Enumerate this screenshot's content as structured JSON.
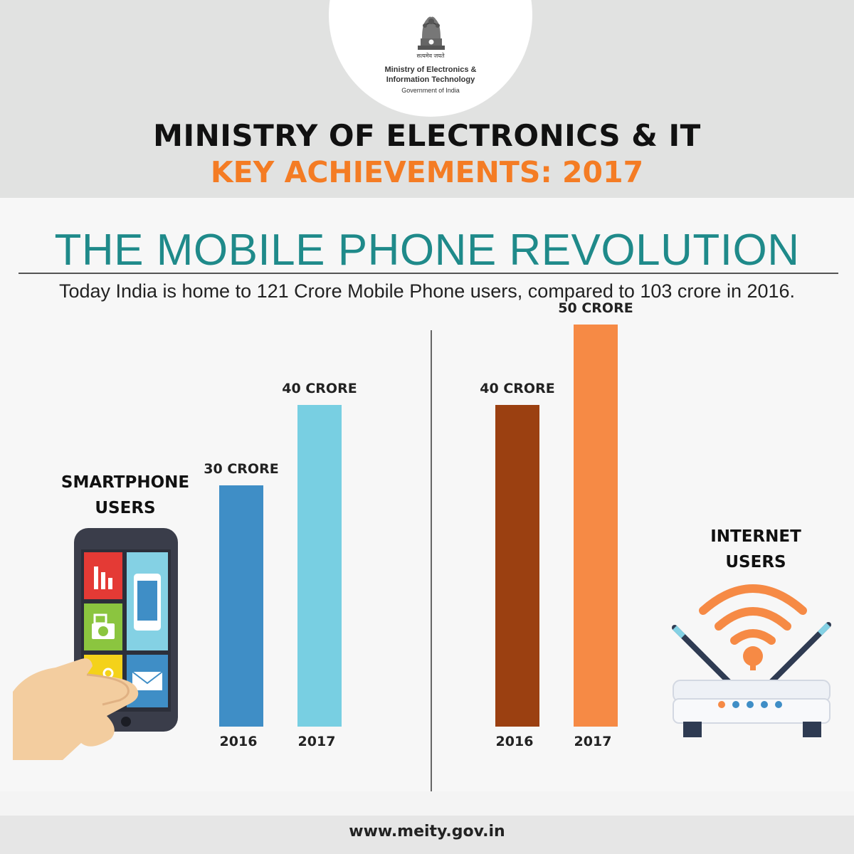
{
  "header": {
    "motto": "सत्यमेव जयते",
    "logo_line1": "Ministry of Electronics &",
    "logo_line2": "Information Technology",
    "logo_line3": "Government of India",
    "title": "MINISTRY OF ELECTRONICS & IT",
    "subtitle": "KEY ACHIEVEMENTS: 2017"
  },
  "section": {
    "headline": "THE MOBILE PHONE REVOLUTION",
    "summary": "Today India is home to 121 Crore Mobile Phone users, compared to 103 crore in 2016."
  },
  "chart_data": [
    {
      "type": "bar",
      "title": "SMARTPHONE USERS",
      "title_lines": [
        "SMARTPHONE",
        "USERS"
      ],
      "categories": [
        "2016",
        "2017"
      ],
      "values": [
        30,
        40
      ],
      "value_labels": [
        "30 CRORE",
        "40 CRORE"
      ],
      "unit": "crore",
      "colors": [
        "#3f8ec6",
        "#78cfe2"
      ],
      "icon": "smartphone-icon"
    },
    {
      "type": "bar",
      "title": "INTERNET USERS",
      "title_lines": [
        "INTERNET",
        "USERS"
      ],
      "categories": [
        "2016",
        "2017"
      ],
      "values": [
        40,
        50
      ],
      "value_labels": [
        "40 CRORE",
        "50 CRORE"
      ],
      "unit": "crore",
      "colors": [
        "#9b4011",
        "#f68a45"
      ],
      "icon": "wifi-router-icon"
    }
  ],
  "footer": {
    "url": "www.meity.gov.in"
  }
}
